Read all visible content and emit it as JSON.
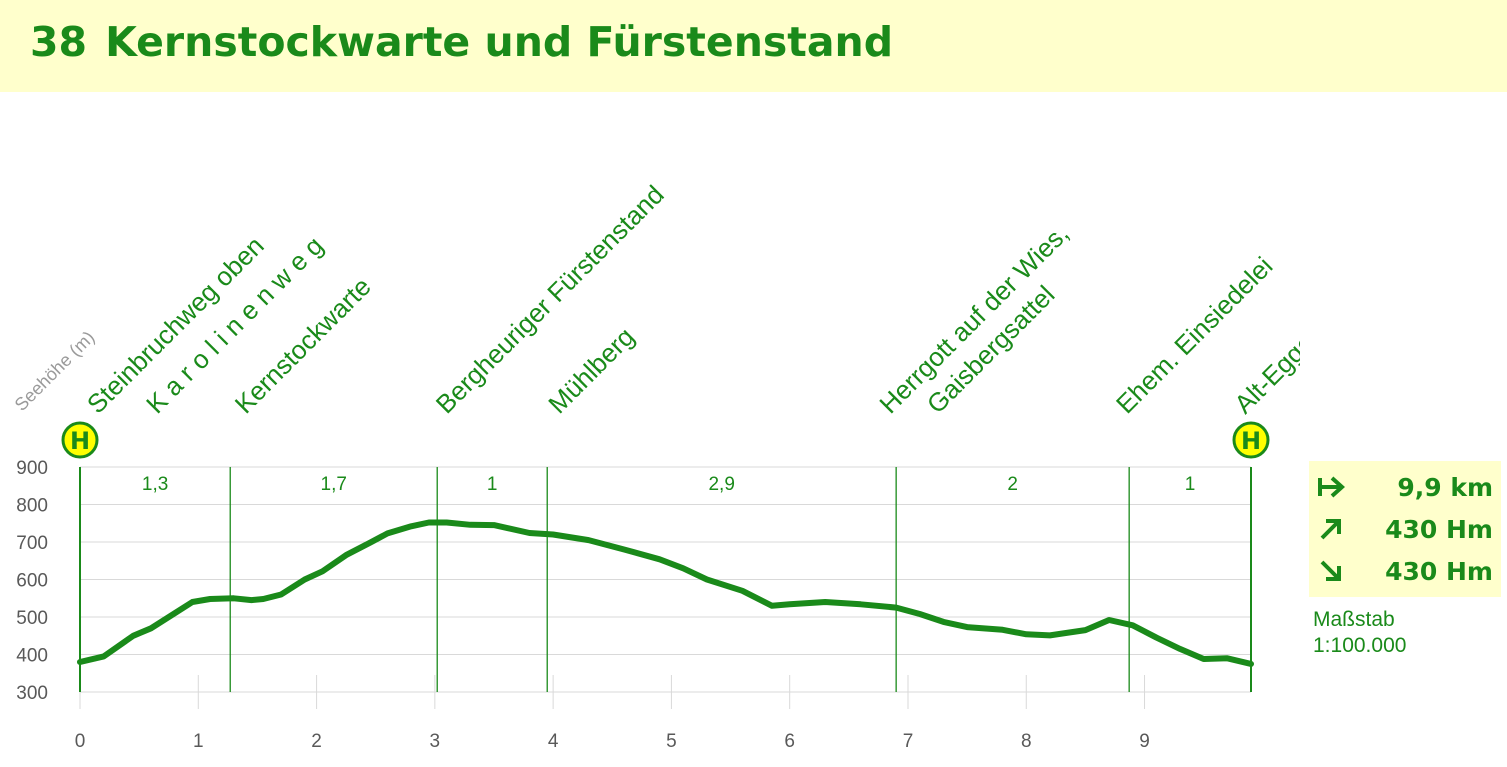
{
  "header": {
    "route_number": "38",
    "title": "Kernstockwarte und Fürstenstand"
  },
  "chart_data": {
    "type": "area",
    "title": "",
    "xlabel": "",
    "ylabel": "Seehöhe (m)",
    "xlim": [
      0,
      9.9
    ],
    "ylim": [
      300,
      900
    ],
    "x_ticks": [
      0,
      1,
      2,
      3,
      4,
      5,
      6,
      7,
      8,
      9
    ],
    "y_ticks": [
      300,
      400,
      500,
      600,
      700,
      800,
      900
    ],
    "grid": "horizontal",
    "profile": {
      "x": [
        0,
        0.2,
        0.45,
        0.6,
        0.8,
        0.95,
        1.1,
        1.3,
        1.45,
        1.55,
        1.7,
        1.9,
        2.05,
        2.25,
        2.45,
        2.6,
        2.8,
        2.95,
        3.1,
        3.3,
        3.5,
        3.8,
        4.0,
        4.3,
        4.6,
        4.9,
        5.1,
        5.3,
        5.6,
        5.85,
        6.0,
        6.3,
        6.6,
        6.9,
        7.1,
        7.3,
        7.5,
        7.8,
        8.0,
        8.2,
        8.5,
        8.7,
        8.9,
        9.1,
        9.3,
        9.5,
        9.7,
        9.9
      ],
      "y": [
        380,
        395,
        450,
        470,
        510,
        540,
        548,
        550,
        545,
        548,
        560,
        600,
        622,
        665,
        698,
        723,
        742,
        752,
        752,
        746,
        745,
        724,
        720,
        705,
        680,
        654,
        630,
        600,
        570,
        530,
        534,
        540,
        534,
        525,
        508,
        487,
        473,
        466,
        454,
        451,
        465,
        492,
        478,
        445,
        415,
        388,
        390,
        375
      ]
    },
    "segments": [
      {
        "start": 0,
        "end": 1.27,
        "length_label": "1,3"
      },
      {
        "start": 1.27,
        "end": 3.02,
        "length_label": "1,7"
      },
      {
        "start": 3.02,
        "end": 3.95,
        "length_label": "1"
      },
      {
        "start": 3.95,
        "end": 6.9,
        "length_label": "2,9"
      },
      {
        "start": 6.9,
        "end": 8.87,
        "length_label": "2"
      },
      {
        "start": 8.87,
        "end": 9.9,
        "length_label": "1"
      }
    ],
    "waypoints": [
      {
        "name": "Steinbruchweg oben",
        "x": 0.05
      },
      {
        "name": "K a r o l i n e n w e g",
        "x": 0.55
      },
      {
        "name": "Kernstockwarte",
        "x": 1.3
      },
      {
        "name": "Bergheuriger Fürstenstand",
        "x": 3.0
      },
      {
        "name": "Mühlberg",
        "x": 3.95
      },
      {
        "name": "Herrgott auf der Wies,",
        "x": 6.75
      },
      {
        "name": "Gaisbergsattel",
        "x": 7.15
      },
      {
        "name": "Ehem. Einsiedelei",
        "x": 8.75
      },
      {
        "name": "Alt-Eggenberg",
        "x": 9.75
      }
    ],
    "bus_stop_symbol": "H",
    "bus_stops_x": [
      0,
      9.9
    ]
  },
  "stats": {
    "distance": "9,9 km",
    "ascent": "430 Hm",
    "descent": "430 Hm",
    "distance_icon": "arrow-right-bar-icon",
    "ascent_icon": "arrow-up-right-icon",
    "descent_icon": "arrow-down-right-icon"
  },
  "scale": {
    "label": "Maßstab",
    "value": "1:100.000"
  },
  "colors": {
    "header_bg": "#ffffcc",
    "green": "#1a8a1a",
    "grid": "#d9d9d9",
    "bus_stop_fill": "#ffff00"
  }
}
